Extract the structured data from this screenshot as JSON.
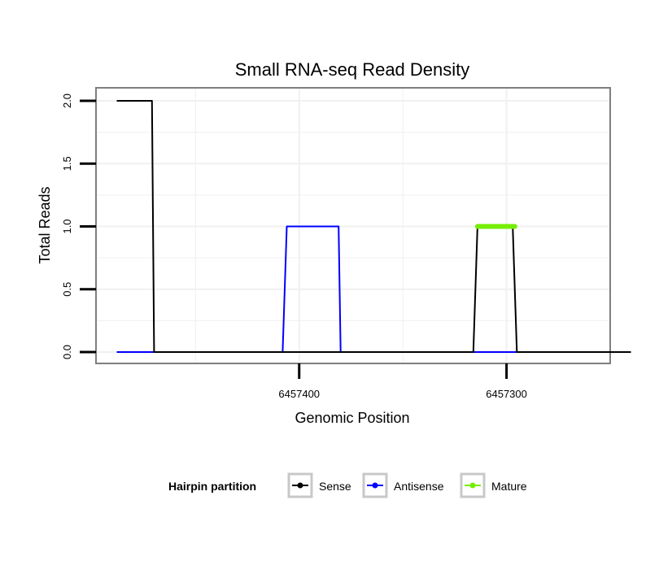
{
  "chart_data": {
    "type": "line",
    "title": "Small RNA-seq Read Density",
    "xlabel": "Genomic Position",
    "ylabel": "Total Reads",
    "x_reversed": true,
    "xlim": [
      6457498,
      6457250
    ],
    "ylim": [
      0,
      2
    ],
    "x_ticks": [
      6457400,
      6457300
    ],
    "x_tick_labels": [
      "6457400",
      "6457300"
    ],
    "y_ticks": [
      0,
      0.5,
      1,
      1.5,
      2
    ],
    "y_tick_labels": [
      "0.0",
      "0.5",
      "1.0",
      "1.5",
      "2.0"
    ],
    "grid": true,
    "legend_position": "bottom",
    "legend_title": "Hairpin partition",
    "series": [
      {
        "name": "Sense",
        "color": "#000000",
        "points": [
          {
            "x": 6457488,
            "y": 2
          },
          {
            "x": 6457471,
            "y": 2
          },
          {
            "x": 6457470,
            "y": 0
          },
          {
            "x": 6457316,
            "y": 0
          },
          {
            "x": 6457314,
            "y": 1
          },
          {
            "x": 6457297,
            "y": 1
          },
          {
            "x": 6457295,
            "y": 0
          },
          {
            "x": 6457240,
            "y": 0
          }
        ]
      },
      {
        "name": "Antisense",
        "color": "#0000ff",
        "points": [
          {
            "x": 6457488,
            "y": 0
          },
          {
            "x": 6457408,
            "y": 0
          },
          {
            "x": 6457406,
            "y": 1
          },
          {
            "x": 6457381,
            "y": 1
          },
          {
            "x": 6457380,
            "y": 0
          },
          {
            "x": 6457240,
            "y": 0
          }
        ]
      },
      {
        "name": "Mature",
        "color": "#76ee00",
        "points": [
          {
            "x": 6457314,
            "y": 1
          },
          {
            "x": 6457296,
            "y": 1
          }
        ]
      }
    ]
  }
}
